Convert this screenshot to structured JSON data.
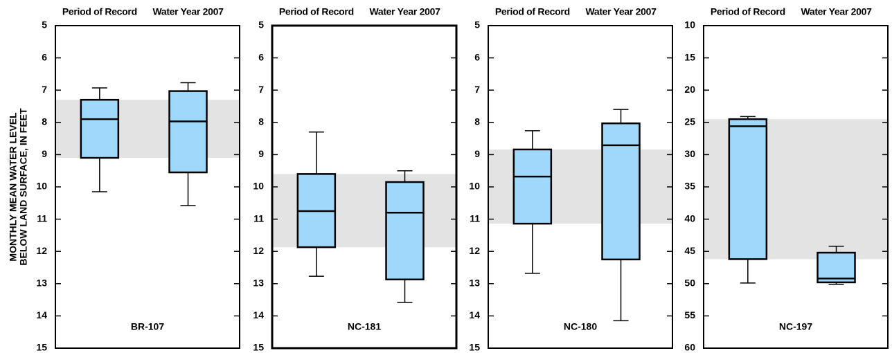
{
  "ylabel": [
    "MONTHLY MEAN WATER LEVEL",
    "BELOW LAND SURFACE, IN FEET"
  ],
  "chart_data": [
    {
      "type": "box",
      "station": "BR-107",
      "categories": [
        "Period of Record",
        "Water Year 2007"
      ],
      "stats": [
        {
          "min": 6.93,
          "q1": 7.3,
          "median": 7.9,
          "q3": 9.1,
          "max": 10.15
        },
        {
          "min": 6.77,
          "q1": 7.03,
          "median": 7.97,
          "q3": 9.55,
          "max": 10.58
        }
      ],
      "ylim": [
        5,
        15
      ],
      "yticks": [
        5,
        6,
        7,
        8,
        9,
        10,
        11,
        12,
        13,
        14,
        15
      ],
      "y_inverted": true,
      "box_color": "#9fd8fa",
      "band_color": "#e3e3e3"
    },
    {
      "type": "box",
      "station": "NC-181",
      "categories": [
        "Period of Record",
        "Water Year 2007"
      ],
      "stats": [
        {
          "min": 8.3,
          "q1": 9.6,
          "median": 10.75,
          "q3": 11.87,
          "max": 12.77
        },
        {
          "min": 9.5,
          "q1": 9.85,
          "median": 10.8,
          "q3": 12.87,
          "max": 13.58
        }
      ],
      "ylim": [
        5,
        15
      ],
      "yticks": [
        5,
        6,
        7,
        8,
        9,
        10,
        11,
        12,
        13,
        14,
        15
      ],
      "y_inverted": true,
      "box_color": "#9fd8fa",
      "band_color": "#e3e3e3"
    },
    {
      "type": "box",
      "station": "NC-180",
      "categories": [
        "Period of Record",
        "Water Year 2007"
      ],
      "stats": [
        {
          "min": 8.26,
          "q1": 8.84,
          "median": 9.68,
          "q3": 11.14,
          "max": 12.68
        },
        {
          "min": 7.6,
          "q1": 8.03,
          "median": 8.71,
          "q3": 12.25,
          "max": 14.15
        }
      ],
      "ylim": [
        5,
        15
      ],
      "yticks": [
        5,
        6,
        7,
        8,
        9,
        10,
        11,
        12,
        13,
        14,
        15
      ],
      "y_inverted": true,
      "box_color": "#9fd8fa",
      "band_color": "#e3e3e3"
    },
    {
      "type": "box",
      "station": "NC-197",
      "categories": [
        "Period of Record",
        "Water Year 2007"
      ],
      "stats": [
        {
          "min": 24.1,
          "q1": 24.5,
          "median": 25.6,
          "q3": 46.2,
          "max": 49.9
        },
        {
          "min": 44.2,
          "q1": 45.2,
          "median": 49.2,
          "q3": 49.8,
          "max": 50.1
        }
      ],
      "ylim": [
        10,
        60
      ],
      "yticks": [
        10,
        15,
        20,
        25,
        30,
        35,
        40,
        45,
        50,
        55,
        60
      ],
      "y_inverted": true,
      "box_color": "#9fd8fa",
      "band_color": "#e3e3e3"
    }
  ]
}
